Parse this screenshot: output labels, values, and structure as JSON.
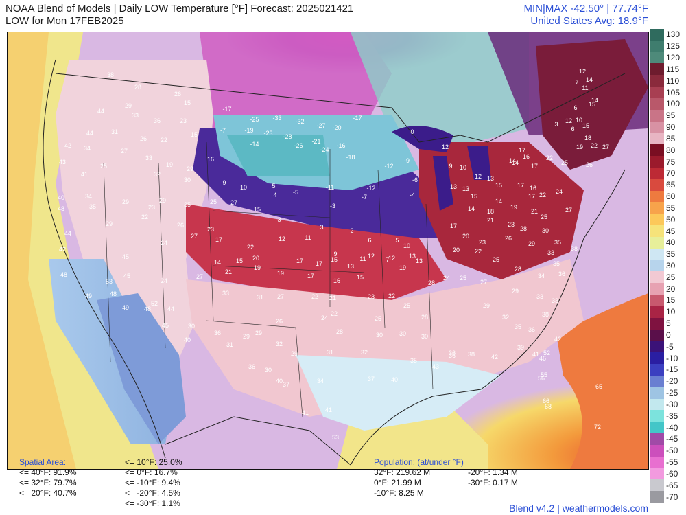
{
  "header": {
    "title_line1": "NOAA Blend of Models | Daily LOW Temperature [°F] Forecast: 2025021421",
    "title_line2": "LOW for Mon 17FEB2025",
    "minmax": "MIN|MAX -42.50°  |  77.74°F",
    "us_avg": "United States Avg: 18.9°F"
  },
  "colorbar": {
    "labels": [
      "130",
      "125",
      "120",
      "115",
      "110",
      "105",
      "100",
      "95",
      "90",
      "85",
      "80",
      "75",
      "70",
      "65",
      "60",
      "55",
      "50",
      "45",
      "40",
      "35",
      "30",
      "25",
      "20",
      "15",
      "10",
      "5",
      "0",
      "-5",
      "-10",
      "-15",
      "-20",
      "-25",
      "-30",
      "-35",
      "-40",
      "-45",
      "-50",
      "-55",
      "-60",
      "-65",
      "-70"
    ],
    "colors": [
      "#2f6b5e",
      "#3f7d6e",
      "#4e8a7a",
      "#6e1c2e",
      "#8a2a3c",
      "#a83f52",
      "#b9586a",
      "#c97487",
      "#d892a4",
      "#e8b5c3",
      "#7a0e22",
      "#9b1a2c",
      "#bd2a35",
      "#d94a3e",
      "#ee7a3f",
      "#f7a34b",
      "#fcc85a",
      "#f6e37a",
      "#e7ef9a",
      "#cfe7f3",
      "#b7d4ec",
      "#f2c9d3",
      "#e7a2b2",
      "#c8596e",
      "#a92445",
      "#7f1240",
      "#5a0f4a",
      "#3b1278",
      "#2a1ea2",
      "#3b3fc0",
      "#6a7fd1",
      "#9ec4e3",
      "#c2e8ee",
      "#7ce3dd",
      "#43c6c8",
      "#a04aa7",
      "#cc4fbc",
      "#e86fd0",
      "#f29adf",
      "#c9c9cf",
      "#9a9aa0"
    ]
  },
  "map_labels": [
    {
      "v": "38"
    },
    {
      "v": "28"
    },
    {
      "v": "29"
    },
    {
      "v": "26"
    },
    {
      "v": "15"
    },
    {
      "v": "44"
    },
    {
      "v": "33"
    },
    {
      "v": "36"
    },
    {
      "v": "23"
    },
    {
      "v": "-17"
    },
    {
      "v": "-25"
    },
    {
      "v": "-33"
    },
    {
      "v": "-32"
    },
    {
      "v": "-27"
    },
    {
      "v": "-20"
    },
    {
      "v": "-17"
    },
    {
      "v": "44"
    },
    {
      "v": "31"
    },
    {
      "v": "26"
    },
    {
      "v": "22"
    },
    {
      "v": "15"
    },
    {
      "v": "-7"
    },
    {
      "v": "-19"
    },
    {
      "v": "-23"
    },
    {
      "v": "-28"
    },
    {
      "v": "-21"
    },
    {
      "v": "-16"
    },
    {
      "v": "0"
    },
    {
      "v": "12"
    },
    {
      "v": "42"
    },
    {
      "v": "34"
    },
    {
      "v": "27"
    },
    {
      "v": "33"
    },
    {
      "v": "19"
    },
    {
      "v": "29"
    },
    {
      "v": "16"
    },
    {
      "v": "-14"
    },
    {
      "v": "-26"
    },
    {
      "v": "-24"
    },
    {
      "v": "-18"
    },
    {
      "v": "-12"
    },
    {
      "v": "-9"
    },
    {
      "v": "43"
    },
    {
      "v": "41"
    },
    {
      "v": "25"
    },
    {
      "v": "32"
    },
    {
      "v": "30"
    },
    {
      "v": "9"
    },
    {
      "v": "10"
    },
    {
      "v": "5"
    },
    {
      "v": "-5"
    },
    {
      "v": "-11"
    },
    {
      "v": "-12"
    },
    {
      "v": "-6"
    },
    {
      "v": "40"
    },
    {
      "v": "34"
    },
    {
      "v": "29"
    },
    {
      "v": "23"
    },
    {
      "v": "29"
    },
    {
      "v": "35"
    },
    {
      "v": "25"
    },
    {
      "v": "27"
    },
    {
      "v": "4"
    },
    {
      "v": "-3"
    },
    {
      "v": "-7"
    },
    {
      "v": "-4"
    },
    {
      "v": "48"
    },
    {
      "v": "35"
    },
    {
      "v": "22"
    },
    {
      "v": "26"
    },
    {
      "v": "23"
    },
    {
      "v": "15"
    },
    {
      "v": "3"
    },
    {
      "v": "3"
    },
    {
      "v": "2"
    },
    {
      "v": "6"
    },
    {
      "v": "5"
    },
    {
      "v": "44"
    },
    {
      "v": "29"
    },
    {
      "v": "24"
    },
    {
      "v": "27"
    },
    {
      "v": "17"
    },
    {
      "v": "22"
    },
    {
      "v": "12"
    },
    {
      "v": "11"
    },
    {
      "v": "9"
    },
    {
      "v": "11"
    },
    {
      "v": "7"
    },
    {
      "v": "10"
    },
    {
      "v": "13"
    },
    {
      "v": "42"
    },
    {
      "v": "45"
    },
    {
      "v": "14"
    },
    {
      "v": "15"
    },
    {
      "v": "20"
    },
    {
      "v": "17"
    },
    {
      "v": "17"
    },
    {
      "v": "15"
    },
    {
      "v": "13"
    },
    {
      "v": "12"
    },
    {
      "v": "12"
    },
    {
      "v": "13"
    },
    {
      "v": "48"
    },
    {
      "v": "53"
    },
    {
      "v": "45"
    },
    {
      "v": "24"
    },
    {
      "v": "27"
    },
    {
      "v": "21"
    },
    {
      "v": "19"
    },
    {
      "v": "19"
    },
    {
      "v": "17"
    },
    {
      "v": "16"
    },
    {
      "v": "15"
    },
    {
      "v": "19"
    },
    {
      "v": "49"
    },
    {
      "v": "48"
    },
    {
      "v": "52"
    },
    {
      "v": "33"
    },
    {
      "v": "31"
    },
    {
      "v": "27"
    },
    {
      "v": "22"
    },
    {
      "v": "21"
    },
    {
      "v": "23"
    },
    {
      "v": "22"
    },
    {
      "v": "25"
    },
    {
      "v": "49"
    },
    {
      "v": "48"
    },
    {
      "v": "44"
    },
    {
      "v": "30"
    },
    {
      "v": "26"
    },
    {
      "v": "24"
    },
    {
      "v": "22"
    },
    {
      "v": "25"
    },
    {
      "v": "28"
    },
    {
      "v": "45"
    },
    {
      "v": "36"
    },
    {
      "v": "29"
    },
    {
      "v": "29"
    },
    {
      "v": "28"
    },
    {
      "v": "30"
    },
    {
      "v": "30"
    },
    {
      "v": "30"
    },
    {
      "v": "40"
    },
    {
      "v": "31"
    },
    {
      "v": "32"
    },
    {
      "v": "29"
    },
    {
      "v": "31"
    },
    {
      "v": "32"
    },
    {
      "v": "35"
    },
    {
      "v": "36"
    },
    {
      "v": "36"
    },
    {
      "v": "30"
    },
    {
      "v": "40"
    },
    {
      "v": "37"
    },
    {
      "v": "34"
    },
    {
      "v": "37"
    },
    {
      "v": "40"
    },
    {
      "v": "43"
    },
    {
      "v": "41"
    },
    {
      "v": "41"
    },
    {
      "v": "53"
    },
    {
      "v": "12"
    },
    {
      "v": "14"
    },
    {
      "v": "7"
    },
    {
      "v": "11"
    },
    {
      "v": "14"
    },
    {
      "v": "6"
    },
    {
      "v": "15"
    },
    {
      "v": "6"
    },
    {
      "v": "3"
    },
    {
      "v": "12"
    },
    {
      "v": "10"
    },
    {
      "v": "15"
    },
    {
      "v": "18"
    },
    {
      "v": "19"
    },
    {
      "v": "22"
    },
    {
      "v": "27"
    },
    {
      "v": "17"
    },
    {
      "v": "14"
    },
    {
      "v": "16"
    },
    {
      "v": "17"
    },
    {
      "v": "14"
    },
    {
      "v": "22"
    },
    {
      "v": "25"
    },
    {
      "v": "26"
    },
    {
      "v": "9"
    },
    {
      "v": "10"
    },
    {
      "v": "12"
    },
    {
      "v": "13"
    },
    {
      "v": "15"
    },
    {
      "v": "17"
    },
    {
      "v": "16"
    },
    {
      "v": "22"
    },
    {
      "v": "24"
    },
    {
      "v": "13"
    },
    {
      "v": "13"
    },
    {
      "v": "15"
    },
    {
      "v": "14"
    },
    {
      "v": "17"
    },
    {
      "v": "19"
    },
    {
      "v": "21"
    },
    {
      "v": "25"
    },
    {
      "v": "27"
    },
    {
      "v": "14"
    },
    {
      "v": "18"
    },
    {
      "v": "21"
    },
    {
      "v": "23"
    },
    {
      "v": "28"
    },
    {
      "v": "30"
    },
    {
      "v": "35"
    },
    {
      "v": "38"
    },
    {
      "v": "17"
    },
    {
      "v": "20"
    },
    {
      "v": "23"
    },
    {
      "v": "26"
    },
    {
      "v": "29"
    },
    {
      "v": "33"
    },
    {
      "v": "35"
    },
    {
      "v": "20"
    },
    {
      "v": "22"
    },
    {
      "v": "25"
    },
    {
      "v": "28"
    },
    {
      "v": "34"
    },
    {
      "v": "36"
    },
    {
      "v": "24"
    },
    {
      "v": "25"
    },
    {
      "v": "27"
    },
    {
      "v": "29"
    },
    {
      "v": "33"
    },
    {
      "v": "33"
    },
    {
      "v": "38"
    },
    {
      "v": "28"
    },
    {
      "v": "29"
    },
    {
      "v": "32"
    },
    {
      "v": "35"
    },
    {
      "v": "36"
    },
    {
      "v": "42"
    },
    {
      "v": "36"
    },
    {
      "v": "38"
    },
    {
      "v": "42"
    },
    {
      "v": "39"
    },
    {
      "v": "41"
    },
    {
      "v": "46"
    },
    {
      "v": "52"
    },
    {
      "v": "55"
    },
    {
      "v": "56"
    },
    {
      "v": "65"
    },
    {
      "v": "66"
    },
    {
      "v": "68"
    },
    {
      "v": "72"
    }
  ],
  "spatial_area": {
    "heading": "Spatial Area:",
    "col1": [
      "<= 40°F: 91.9%",
      "<= 32°F: 79.7%",
      "<= 20°F: 40.7%"
    ],
    "col2": [
      "<= 10°F: 25.0%",
      "<= 0°F: 16.7%",
      "<= -10°F: 9.4%",
      "<= -20°F: 4.5%",
      "<= -30°F: 1.1%"
    ]
  },
  "population": {
    "heading": "Population: (at/under °F)",
    "col1": [
      "32°F: 219.62 M",
      "0°F: 21.99 M",
      "-10°F: 8.25 M"
    ],
    "col2": [
      "-20°F: 1.34 M",
      "-30°F: 0.17 M"
    ]
  },
  "footer": "Blend v4.2 | weathermodels.com"
}
